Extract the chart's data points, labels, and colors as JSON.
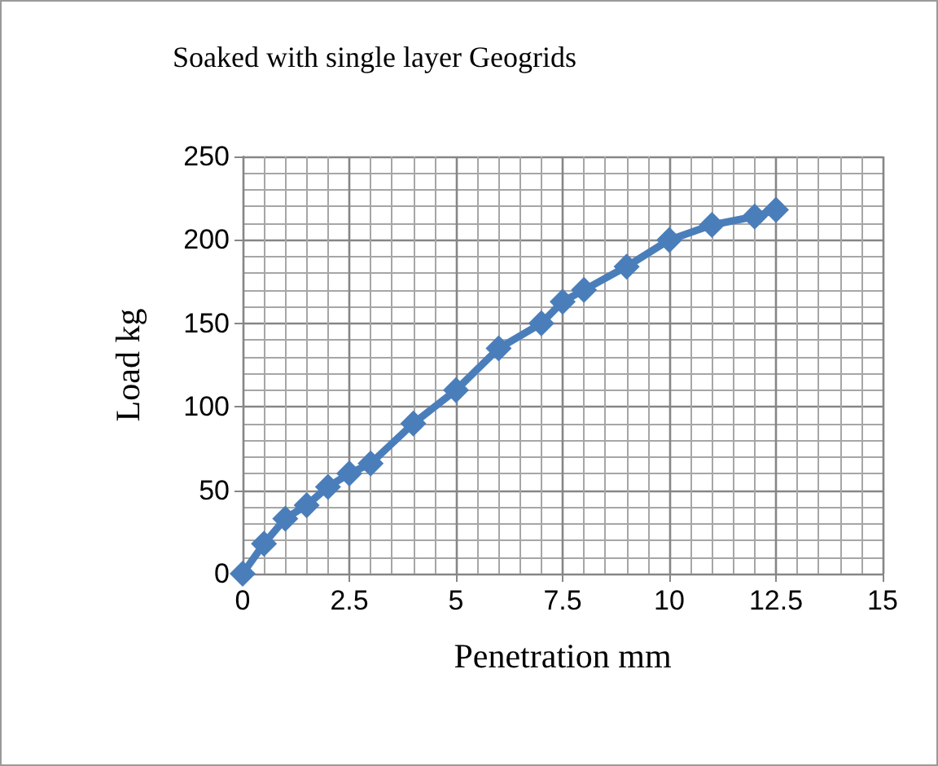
{
  "chart_data": {
    "type": "line",
    "title": "Soaked with single layer Geogrids",
    "xlabel": "Penetration mm",
    "ylabel": "Load kg",
    "x": [
      0,
      0.5,
      1,
      1.5,
      2,
      2.5,
      3,
      4,
      5,
      6,
      7,
      7.5,
      8,
      9,
      10,
      11,
      12,
      12.5
    ],
    "series": [
      {
        "color": "#4a7ebb",
        "values": [
          0,
          18,
          33,
          41,
          52,
          60,
          66,
          90,
          110,
          135,
          150,
          163,
          170,
          184,
          200,
          209,
          214,
          218
        ]
      }
    ],
    "xlim": [
      0,
      15
    ],
    "xticks": [
      0,
      2.5,
      5,
      7.5,
      10,
      12.5,
      15
    ],
    "ylim": [
      0,
      250
    ],
    "yticks": [
      0,
      50,
      100,
      150,
      200,
      250
    ],
    "grid": true,
    "marker": "diamond",
    "line_style": "solid"
  }
}
